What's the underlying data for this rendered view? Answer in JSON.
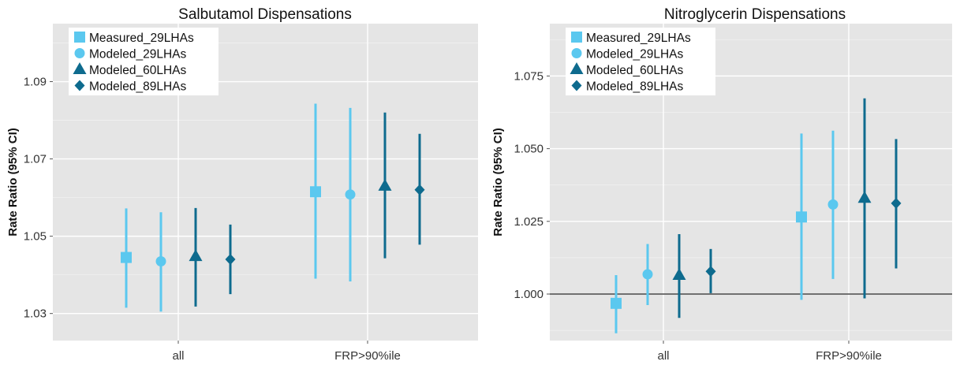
{
  "chart_data": [
    {
      "type": "scatter",
      "title": "Salbutamol Dispensations",
      "xlabel": "",
      "ylabel": "Rate Ratio (95% CI)",
      "categories": [
        "all",
        "FRP>90%ile"
      ],
      "ylim": [
        1.023,
        1.105
      ],
      "yticks": [
        "1.03",
        "1.05",
        "1.07",
        "1.09"
      ],
      "grid": true,
      "legend": "top-left",
      "reference_line": null,
      "series": [
        {
          "name": "Measured_29LHAs",
          "marker": "square",
          "color": "#5bc8ef",
          "points": [
            {
              "x": "all",
              "y": 1.0445,
              "lower": 1.0315,
              "upper": 1.0572
            },
            {
              "x": "FRP>90%ile",
              "y": 1.0615,
              "lower": 1.039,
              "upper": 1.0843
            }
          ]
        },
        {
          "name": "Modeled_29LHAs",
          "marker": "circle",
          "color": "#5bc8ef",
          "points": [
            {
              "x": "all",
              "y": 1.0435,
              "lower": 1.0305,
              "upper": 1.0562
            },
            {
              "x": "FRP>90%ile",
              "y": 1.0608,
              "lower": 1.0383,
              "upper": 1.0832
            }
          ]
        },
        {
          "name": "Modeled_60LHAs",
          "marker": "triangle",
          "color": "#0e6b8e",
          "points": [
            {
              "x": "all",
              "y": 1.0448,
              "lower": 1.0318,
              "upper": 1.0573
            },
            {
              "x": "FRP>90%ile",
              "y": 1.063,
              "lower": 1.0443,
              "upper": 1.082
            }
          ]
        },
        {
          "name": "Modeled_89LHAs",
          "marker": "diamond",
          "color": "#0e6b8e",
          "points": [
            {
              "x": "all",
              "y": 1.044,
              "lower": 1.035,
              "upper": 1.053
            },
            {
              "x": "FRP>90%ile",
              "y": 1.062,
              "lower": 1.0478,
              "upper": 1.0765
            }
          ]
        }
      ]
    },
    {
      "type": "scatter",
      "title": "Nitroglycerin Dispensations",
      "xlabel": "",
      "ylabel": "Rate Ratio (95% CI)",
      "categories": [
        "all",
        "FRP>90%ile"
      ],
      "ylim": [
        0.984,
        1.093
      ],
      "yticks": [
        "1.000",
        "1.025",
        "1.050",
        "1.075"
      ],
      "grid": true,
      "legend": "top-left",
      "reference_line": 1.0,
      "series": [
        {
          "name": "Measured_29LHAs",
          "marker": "square",
          "color": "#5bc8ef",
          "points": [
            {
              "x": "all",
              "y": 0.9968,
              "lower": 0.9865,
              "upper": 1.0065
            },
            {
              "x": "FRP>90%ile",
              "y": 1.0265,
              "lower": 0.998,
              "upper": 1.0552
            }
          ]
        },
        {
          "name": "Modeled_29LHAs",
          "marker": "circle",
          "color": "#5bc8ef",
          "points": [
            {
              "x": "all",
              "y": 1.0068,
              "lower": 0.9962,
              "upper": 1.0172
            },
            {
              "x": "FRP>90%ile",
              "y": 1.0308,
              "lower": 1.0052,
              "upper": 1.0562
            }
          ]
        },
        {
          "name": "Modeled_60LHAs",
          "marker": "triangle",
          "color": "#0e6b8e",
          "points": [
            {
              "x": "all",
              "y": 1.0065,
              "lower": 0.9918,
              "upper": 1.0206
            },
            {
              "x": "FRP>90%ile",
              "y": 1.033,
              "lower": 0.9985,
              "upper": 1.0673
            }
          ]
        },
        {
          "name": "Modeled_89LHAs",
          "marker": "diamond",
          "color": "#0e6b8e",
          "points": [
            {
              "x": "all",
              "y": 1.0078,
              "lower": 1.0003,
              "upper": 1.0155
            },
            {
              "x": "FRP>90%ile",
              "y": 1.0312,
              "lower": 1.0088,
              "upper": 1.0533
            }
          ]
        }
      ]
    }
  ]
}
